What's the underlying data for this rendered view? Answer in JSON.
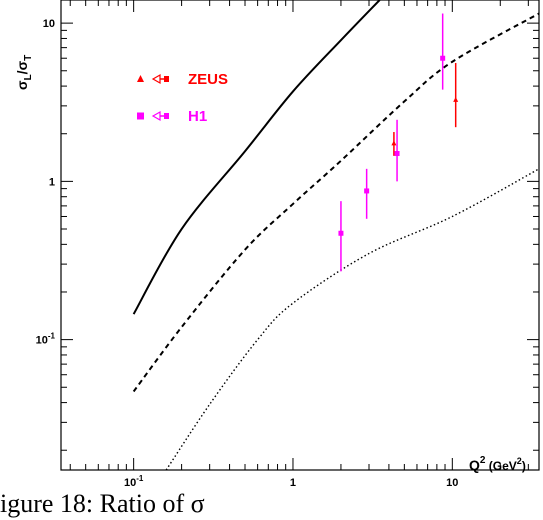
{
  "chart_data": {
    "type": "scatter",
    "xscale": "log",
    "yscale": "log",
    "xlim": [
      0.035,
      35
    ],
    "ylim": [
      0.015,
      14
    ],
    "x_ticks": [
      {
        "value": 0.1,
        "base": "10",
        "exp": "-1"
      },
      {
        "value": 1,
        "base": "1",
        "exp": ""
      },
      {
        "value": 10,
        "base": "10",
        "exp": ""
      }
    ],
    "y_ticks": [
      {
        "value": 0.1,
        "base": "10",
        "exp": "-1"
      },
      {
        "value": 1,
        "base": "1",
        "exp": ""
      },
      {
        "value": 10,
        "base": "10",
        "exp": ""
      }
    ],
    "xlabel": {
      "q": "Q",
      "sup": "2",
      "unit_open": " (GeV",
      "unit_sup": "2",
      "unit_close": ")"
    },
    "ylabel": {
      "sigma": "σ",
      "sub_l": "L",
      "slash": "/",
      "sigma2": "σ",
      "sub_t": "T"
    },
    "series": [
      {
        "name": "ZEUS",
        "color": "#ff0000",
        "marker": "triangle",
        "points": [
          {
            "x": 4.3,
            "y": 1.75,
            "ylow": 1.45,
            "yhigh": 2.05
          },
          {
            "x": 10.5,
            "y": 3.3,
            "ylow": 2.2,
            "yhigh": 5.6
          }
        ]
      },
      {
        "name": "H1",
        "color": "#ff00ff",
        "marker": "square",
        "points": [
          {
            "x": 2.0,
            "y": 0.47,
            "ylow": 0.27,
            "yhigh": 0.75
          },
          {
            "x": 2.9,
            "y": 0.87,
            "ylow": 0.58,
            "yhigh": 1.2
          },
          {
            "x": 4.5,
            "y": 1.5,
            "ylow": 1.0,
            "yhigh": 2.45
          },
          {
            "x": 8.7,
            "y": 6.0,
            "ylow": 3.8,
            "yhigh": 11.5
          }
        ]
      }
    ],
    "curves": [
      {
        "style": "solid",
        "points": [
          [
            0.1,
            0.145
          ],
          [
            0.2,
            0.5
          ],
          [
            0.5,
            1.55
          ],
          [
            1.0,
            3.7
          ],
          [
            2.0,
            7.8
          ],
          [
            3.5,
            14.0
          ]
        ]
      },
      {
        "style": "dashed",
        "points": [
          [
            0.1,
            0.047
          ],
          [
            0.2,
            0.12
          ],
          [
            0.5,
            0.37
          ],
          [
            1.0,
            0.72
          ],
          [
            2.0,
            1.35
          ],
          [
            5.0,
            3.2
          ],
          [
            10.0,
            5.7
          ],
          [
            35.0,
            11.5
          ]
        ]
      },
      {
        "style": "dotted",
        "points": [
          [
            0.16,
            0.015
          ],
          [
            0.3,
            0.039
          ],
          [
            0.6,
            0.1
          ],
          [
            1.0,
            0.17
          ],
          [
            3.0,
            0.35
          ],
          [
            10.0,
            0.6
          ],
          [
            35.0,
            1.2
          ]
        ]
      }
    ]
  },
  "caption": "igure 18:  Ratio of σ"
}
